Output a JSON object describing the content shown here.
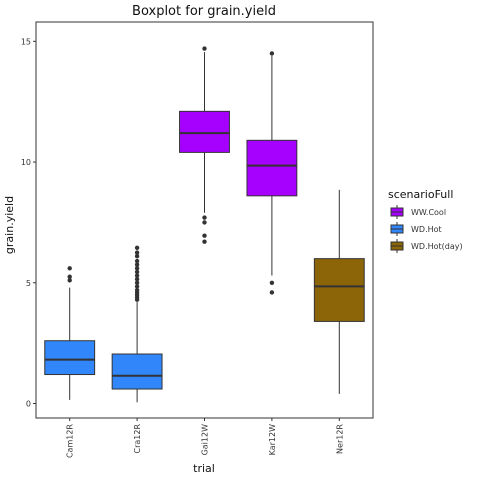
{
  "chart_data": {
    "type": "boxplot",
    "title": "Boxplot for grain.yield",
    "xlabel": "trial",
    "ylabel": "grain.yield",
    "ylim": [
      -0.6,
      15.8
    ],
    "y_ticks": [
      0,
      5,
      10,
      15
    ],
    "categories": [
      "Cam12R",
      "Cra12R",
      "Gai12W",
      "Kar12W",
      "Ner12R"
    ],
    "legend": {
      "title": "scenarioFull",
      "position": "right",
      "entries": [
        {
          "label": "WW.Cool",
          "color": "#A600FF"
        },
        {
          "label": "WD.Hot",
          "color": "#3186F9"
        },
        {
          "label": "WD.Hot(day)",
          "color": "#8B6508"
        }
      ]
    },
    "boxes": [
      {
        "category": "Cam12R",
        "scenario": "WD.Hot",
        "min": 0.15,
        "q1": 1.2,
        "median": 1.82,
        "q3": 2.6,
        "max": 4.8,
        "outliers": [
          5.1,
          5.25,
          5.6
        ]
      },
      {
        "category": "Cra12R",
        "scenario": "WD.Hot",
        "min": 0.05,
        "q1": 0.6,
        "median": 1.15,
        "q3": 2.05,
        "max": 4.2,
        "outliers": [
          4.3,
          4.4,
          4.5,
          4.6,
          4.7,
          4.85,
          5.0,
          5.15,
          5.3,
          5.45,
          5.6,
          5.75,
          5.9,
          6.1,
          6.25,
          6.45
        ]
      },
      {
        "category": "Gai12W",
        "scenario": "WW.Cool",
        "min": 7.9,
        "q1": 10.4,
        "median": 11.2,
        "q3": 12.1,
        "max": 14.55,
        "outliers": [
          7.7,
          7.5,
          6.95,
          6.7,
          14.7
        ]
      },
      {
        "category": "Kar12W",
        "scenario": "WW.Cool",
        "min": 5.3,
        "q1": 8.6,
        "median": 9.85,
        "q3": 10.9,
        "max": 14.4,
        "outliers": [
          5.0,
          4.6,
          14.5
        ]
      },
      {
        "category": "Ner12R",
        "scenario": "WD.Hot(day)",
        "min": 0.4,
        "q1": 3.4,
        "median": 4.85,
        "q3": 6.0,
        "max": 8.85,
        "outliers": []
      }
    ]
  }
}
